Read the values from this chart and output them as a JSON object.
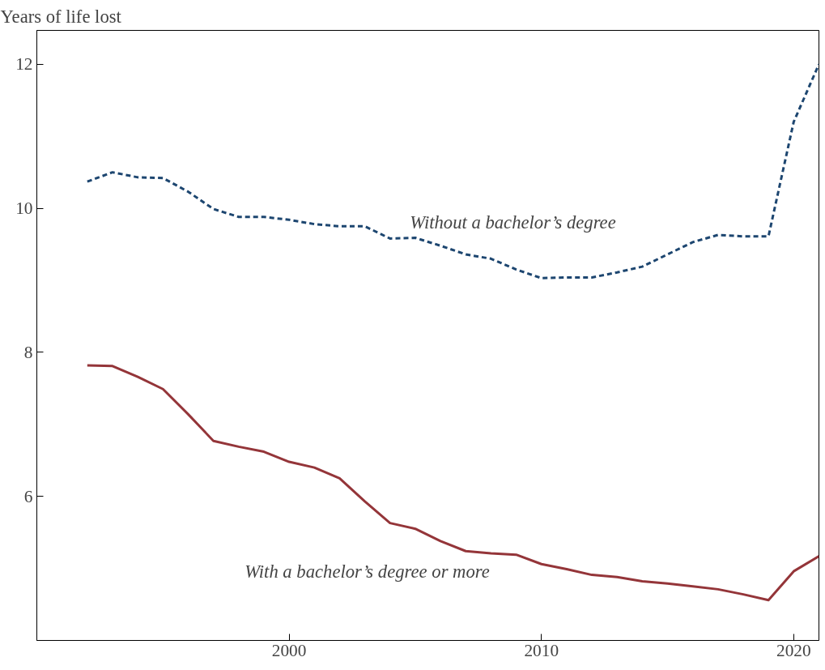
{
  "chart_data": {
    "type": "line",
    "ylabel": "Years of life lost",
    "x": [
      1992,
      1993,
      1994,
      1995,
      1996,
      1997,
      1998,
      1999,
      2000,
      2001,
      2002,
      2003,
      2004,
      2005,
      2006,
      2007,
      2008,
      2009,
      2010,
      2011,
      2012,
      2013,
      2014,
      2015,
      2016,
      2017,
      2018,
      2019,
      2020,
      2021
    ],
    "series": [
      {
        "color": "#1d4670",
        "line_style": "dashed",
        "values": [
          10.37,
          10.5,
          10.43,
          10.42,
          10.23,
          9.99,
          9.88,
          9.88,
          9.84,
          9.78,
          9.75,
          9.75,
          9.58,
          9.59,
          9.48,
          9.36,
          9.3,
          9.15,
          9.03,
          9.04,
          9.04,
          9.11,
          9.19,
          9.36,
          9.53,
          9.63,
          9.61,
          9.61,
          11.2,
          12.0
        ]
      },
      {
        "color": "#943539",
        "line_style": "solid",
        "values": [
          7.82,
          7.81,
          7.66,
          7.49,
          7.14,
          6.77,
          6.69,
          6.62,
          6.48,
          6.4,
          6.25,
          5.93,
          5.63,
          5.55,
          5.38,
          5.24,
          5.21,
          5.19,
          5.06,
          4.99,
          4.91,
          4.88,
          4.82,
          4.79,
          4.75,
          4.71,
          4.64,
          4.56,
          4.96,
          5.17
        ]
      }
    ],
    "annotations": [
      "Without a bachelor’s degree",
      "With a bachelor’s degree or more"
    ],
    "xlim": [
      1990,
      2021
    ],
    "xticks": [
      2000,
      2010,
      2020
    ],
    "ylim": [
      4,
      12.47
    ],
    "yticks": [
      6,
      8,
      10,
      12
    ],
    "grid": false
  }
}
